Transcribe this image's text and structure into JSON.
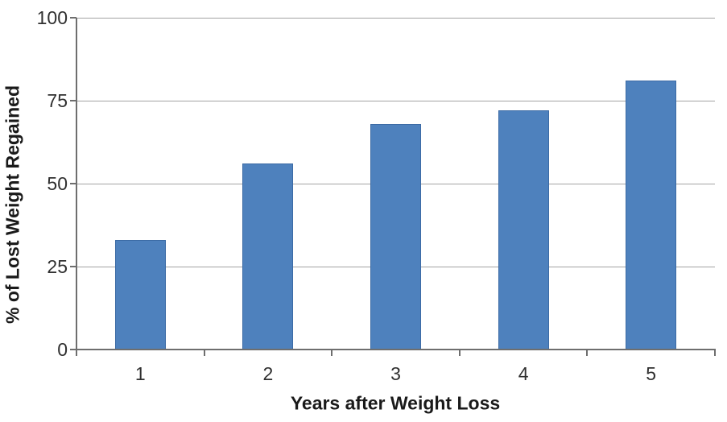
{
  "chart_data": {
    "type": "bar",
    "title": "",
    "xlabel": "Years after Weight Loss",
    "ylabel": "% of Lost Weight Regained",
    "categories": [
      "1",
      "2",
      "3",
      "4",
      "5"
    ],
    "values": [
      33,
      56,
      68,
      72,
      81
    ],
    "series": [
      {
        "name": "% of Lost Weight Regained",
        "values": [
          33,
          56,
          68,
          72,
          81
        ]
      }
    ],
    "yticks": [
      0,
      25,
      50,
      75,
      100
    ],
    "ylim": [
      0,
      100
    ],
    "grid": true,
    "legend": false,
    "colors": {
      "bar_fill": "#4e81bd",
      "bar_border": "#3c6ba5",
      "gridline": "#a3a3a3",
      "axis": "#6e6e6e",
      "tick_text": "#303030",
      "title_text": "#1a1a1a",
      "background": "#ffffff"
    }
  }
}
